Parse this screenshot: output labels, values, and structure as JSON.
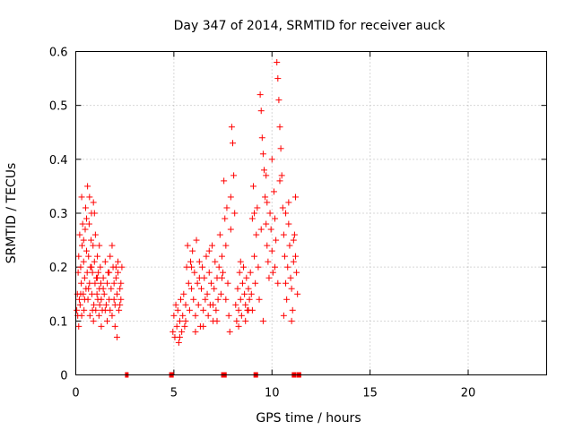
{
  "chart_data": {
    "type": "scatter",
    "title": "Day 347 of 2014, SRMTID for receiver auck",
    "xlabel": "GPS time / hours",
    "ylabel": "SRMTID / TECUs",
    "xlim": [
      0,
      24
    ],
    "ylim": [
      0,
      0.6
    ],
    "xticks": [
      0,
      5,
      10,
      15,
      20
    ],
    "yticks": [
      0,
      0.1,
      0.2,
      0.3,
      0.4,
      0.5,
      0.6
    ],
    "grid": true,
    "legend": "none",
    "marker": "plus",
    "color": "#ff0000",
    "series": [
      {
        "points": [
          [
            0.05,
            0.12
          ],
          [
            0.08,
            0.15
          ],
          [
            0.1,
            0.11
          ],
          [
            0.12,
            0.19
          ],
          [
            0.15,
            0.22
          ],
          [
            0.18,
            0.14
          ],
          [
            0.2,
            0.26
          ],
          [
            0.22,
            0.13
          ],
          [
            0.25,
            0.2
          ],
          [
            0.28,
            0.17
          ],
          [
            0.3,
            0.33
          ],
          [
            0.32,
            0.24
          ],
          [
            0.35,
            0.28
          ],
          [
            0.38,
            0.15
          ],
          [
            0.4,
            0.21
          ],
          [
            0.42,
            0.12
          ],
          [
            0.45,
            0.18
          ],
          [
            0.48,
            0.27
          ],
          [
            0.5,
            0.31
          ],
          [
            0.52,
            0.16
          ],
          [
            0.55,
            0.23
          ],
          [
            0.58,
            0.19
          ],
          [
            0.6,
            0.35
          ],
          [
            0.62,
            0.14
          ],
          [
            0.65,
            0.22
          ],
          [
            0.68,
            0.28
          ],
          [
            0.7,
            0.17
          ],
          [
            0.72,
            0.11
          ],
          [
            0.75,
            0.2
          ],
          [
            0.78,
            0.25
          ],
          [
            0.8,
            0.3
          ],
          [
            0.82,
            0.15
          ],
          [
            0.85,
            0.19
          ],
          [
            0.88,
            0.24
          ],
          [
            0.9,
            0.32
          ],
          [
            0.92,
            0.13
          ],
          [
            0.95,
            0.21
          ],
          [
            0.98,
            0.17
          ],
          [
            1.0,
            0.26
          ],
          [
            1.02,
            0.12
          ],
          [
            1.05,
            0.18
          ],
          [
            1.08,
            0.15
          ],
          [
            1.1,
            0.22
          ],
          [
            1.12,
            0.14
          ],
          [
            1.15,
            0.19
          ],
          [
            1.18,
            0.11
          ],
          [
            1.2,
            0.16
          ],
          [
            1.22,
            0.13
          ],
          [
            1.25,
            0.2
          ],
          [
            1.28,
            0.17
          ],
          [
            1.3,
            0.14
          ],
          [
            1.35,
            0.12
          ],
          [
            1.4,
            0.18
          ],
          [
            1.45,
            0.15
          ],
          [
            1.5,
            0.21
          ],
          [
            1.55,
            0.13
          ],
          [
            1.6,
            0.17
          ],
          [
            1.65,
            0.19
          ],
          [
            1.7,
            0.14
          ],
          [
            1.75,
            0.22
          ],
          [
            1.8,
            0.16
          ],
          [
            1.85,
            0.11
          ],
          [
            1.9,
            0.2
          ],
          [
            1.95,
            0.17
          ],
          [
            2.0,
            0.13
          ],
          [
            2.05,
            0.18
          ],
          [
            2.1,
            0.15
          ],
          [
            2.15,
            0.19
          ],
          [
            2.2,
            0.12
          ],
          [
            2.25,
            0.16
          ],
          [
            2.3,
            0.14
          ],
          [
            2.35,
            0.2
          ],
          [
            1.6,
            0.1
          ],
          [
            1.75,
            0.12
          ],
          [
            2.0,
            0.09
          ],
          [
            2.1,
            0.07
          ],
          [
            0.15,
            0.09
          ],
          [
            0.3,
            0.11
          ],
          [
            0.9,
            0.1
          ],
          [
            1.3,
            0.09
          ],
          [
            0.55,
            0.29
          ],
          [
            0.7,
            0.33
          ],
          [
            0.95,
            0.3
          ],
          [
            1.2,
            0.24
          ],
          [
            1.85,
            0.24
          ],
          [
            2.15,
            0.21
          ],
          [
            0.4,
            0.25
          ],
          [
            0.8,
            0.2
          ],
          [
            1.5,
            0.12
          ],
          [
            1.95,
            0.14
          ],
          [
            2.05,
            0.2
          ],
          [
            2.25,
            0.13
          ],
          [
            0.25,
            0.15
          ],
          [
            0.65,
            0.16
          ],
          [
            1.1,
            0.18
          ],
          [
            1.4,
            0.16
          ],
          [
            1.7,
            0.19
          ],
          [
            2.3,
            0.17
          ],
          [
            0.45,
            0.14
          ],
          [
            0.85,
            0.12
          ],
          [
            4.95,
            0.08
          ],
          [
            5.0,
            0.11
          ],
          [
            5.05,
            0.07
          ],
          [
            5.1,
            0.13
          ],
          [
            5.15,
            0.09
          ],
          [
            5.2,
            0.12
          ],
          [
            5.25,
            0.06
          ],
          [
            5.3,
            0.1
          ],
          [
            5.35,
            0.14
          ],
          [
            5.4,
            0.08
          ],
          [
            5.45,
            0.11
          ],
          [
            5.5,
            0.15
          ],
          [
            5.55,
            0.09
          ],
          [
            5.6,
            0.13
          ],
          [
            5.65,
            0.2
          ],
          [
            5.7,
            0.24
          ],
          [
            5.75,
            0.17
          ],
          [
            5.8,
            0.12
          ],
          [
            5.85,
            0.21
          ],
          [
            5.9,
            0.16
          ],
          [
            5.95,
            0.23
          ],
          [
            6.0,
            0.14
          ],
          [
            6.05,
            0.19
          ],
          [
            6.1,
            0.11
          ],
          [
            6.15,
            0.25
          ],
          [
            6.2,
            0.17
          ],
          [
            6.25,
            0.13
          ],
          [
            6.3,
            0.21
          ],
          [
            6.35,
            0.09
          ],
          [
            6.4,
            0.16
          ],
          [
            6.45,
            0.2
          ],
          [
            6.5,
            0.12
          ],
          [
            6.55,
            0.18
          ],
          [
            6.6,
            0.14
          ],
          [
            6.65,
            0.22
          ],
          [
            6.7,
            0.15
          ],
          [
            6.75,
            0.11
          ],
          [
            6.8,
            0.19
          ],
          [
            6.85,
            0.13
          ],
          [
            6.9,
            0.17
          ],
          [
            6.95,
            0.24
          ],
          [
            7.0,
            0.1
          ],
          [
            7.05,
            0.16
          ],
          [
            7.1,
            0.21
          ],
          [
            7.15,
            0.12
          ],
          [
            7.2,
            0.18
          ],
          [
            7.25,
            0.14
          ],
          [
            7.3,
            0.2
          ],
          [
            7.35,
            0.26
          ],
          [
            7.4,
            0.15
          ],
          [
            7.45,
            0.22
          ],
          [
            7.5,
            0.19
          ],
          [
            7.55,
            0.36
          ],
          [
            7.6,
            0.29
          ],
          [
            7.65,
            0.24
          ],
          [
            7.7,
            0.31
          ],
          [
            7.75,
            0.17
          ],
          [
            7.8,
            0.11
          ],
          [
            7.85,
            0.08
          ],
          [
            7.9,
            0.33
          ],
          [
            7.95,
            0.46
          ],
          [
            8.0,
            0.43
          ],
          [
            8.05,
            0.37
          ],
          [
            8.1,
            0.3
          ],
          [
            8.15,
            0.13
          ],
          [
            8.2,
            0.1
          ],
          [
            8.25,
            0.16
          ],
          [
            8.3,
            0.12
          ],
          [
            8.35,
            0.19
          ],
          [
            8.4,
            0.14
          ],
          [
            8.45,
            0.11
          ],
          [
            8.5,
            0.17
          ],
          [
            8.55,
            0.2
          ],
          [
            8.6,
            0.15
          ],
          [
            8.65,
            0.13
          ],
          [
            8.7,
            0.18
          ],
          [
            8.75,
            0.12
          ],
          [
            8.8,
            0.16
          ],
          [
            8.85,
            0.14
          ],
          [
            8.9,
            0.19
          ],
          [
            8.95,
            0.15
          ],
          [
            9.0,
            0.29
          ],
          [
            9.05,
            0.35
          ],
          [
            9.1,
            0.22
          ],
          [
            9.15,
            0.17
          ],
          [
            9.2,
            0.26
          ],
          [
            9.25,
            0.31
          ],
          [
            9.3,
            0.2
          ],
          [
            9.35,
            0.14
          ],
          [
            9.4,
            0.52
          ],
          [
            9.45,
            0.49
          ],
          [
            9.5,
            0.44
          ],
          [
            9.55,
            0.41
          ],
          [
            9.6,
            0.38
          ],
          [
            9.65,
            0.33
          ],
          [
            9.7,
            0.28
          ],
          [
            9.75,
            0.24
          ],
          [
            9.8,
            0.21
          ],
          [
            9.85,
            0.18
          ],
          [
            9.9,
            0.3
          ],
          [
            9.95,
            0.27
          ],
          [
            10.0,
            0.23
          ],
          [
            10.05,
            0.19
          ],
          [
            10.1,
            0.34
          ],
          [
            10.15,
            0.29
          ],
          [
            10.2,
            0.25
          ],
          [
            10.25,
            0.58
          ],
          [
            10.3,
            0.55
          ],
          [
            10.35,
            0.51
          ],
          [
            10.4,
            0.46
          ],
          [
            10.45,
            0.42
          ],
          [
            10.5,
            0.37
          ],
          [
            10.55,
            0.31
          ],
          [
            10.6,
            0.26
          ],
          [
            10.65,
            0.22
          ],
          [
            10.7,
            0.17
          ],
          [
            10.75,
            0.14
          ],
          [
            10.8,
            0.2
          ],
          [
            10.85,
            0.28
          ],
          [
            10.9,
            0.24
          ],
          [
            10.95,
            0.18
          ],
          [
            11.0,
            0.16
          ],
          [
            11.05,
            0.12
          ],
          [
            11.1,
            0.21
          ],
          [
            11.15,
            0.26
          ],
          [
            11.2,
            0.33
          ],
          [
            11.25,
            0.19
          ],
          [
            11.3,
            0.15
          ],
          [
            5.3,
            0.07
          ],
          [
            5.6,
            0.1
          ],
          [
            6.1,
            0.08
          ],
          [
            6.5,
            0.09
          ],
          [
            7.0,
            0.13
          ],
          [
            7.2,
            0.1
          ],
          [
            7.65,
            0.14
          ],
          [
            8.3,
            0.09
          ],
          [
            8.65,
            0.1
          ],
          [
            9.0,
            0.12
          ],
          [
            9.55,
            0.1
          ],
          [
            10.6,
            0.11
          ],
          [
            11.0,
            0.1
          ],
          [
            5.9,
            0.2
          ],
          [
            6.3,
            0.18
          ],
          [
            6.8,
            0.23
          ],
          [
            7.45,
            0.18
          ],
          [
            7.9,
            0.27
          ],
          [
            8.4,
            0.21
          ],
          [
            9.1,
            0.3
          ],
          [
            9.7,
            0.37
          ],
          [
            10.0,
            0.4
          ],
          [
            10.4,
            0.36
          ],
          [
            10.7,
            0.3
          ],
          [
            10.85,
            0.32
          ],
          [
            11.1,
            0.25
          ],
          [
            11.2,
            0.22
          ],
          [
            9.45,
            0.27
          ],
          [
            9.75,
            0.32
          ],
          [
            10.15,
            0.2
          ],
          [
            10.3,
            0.17
          ],
          [
            8.8,
            0.12
          ]
        ]
      }
    ],
    "zero_points": [
      2.6,
      4.85,
      4.9,
      7.5,
      7.6,
      9.15,
      9.2,
      11.1,
      11.15,
      11.35,
      11.4
    ]
  }
}
